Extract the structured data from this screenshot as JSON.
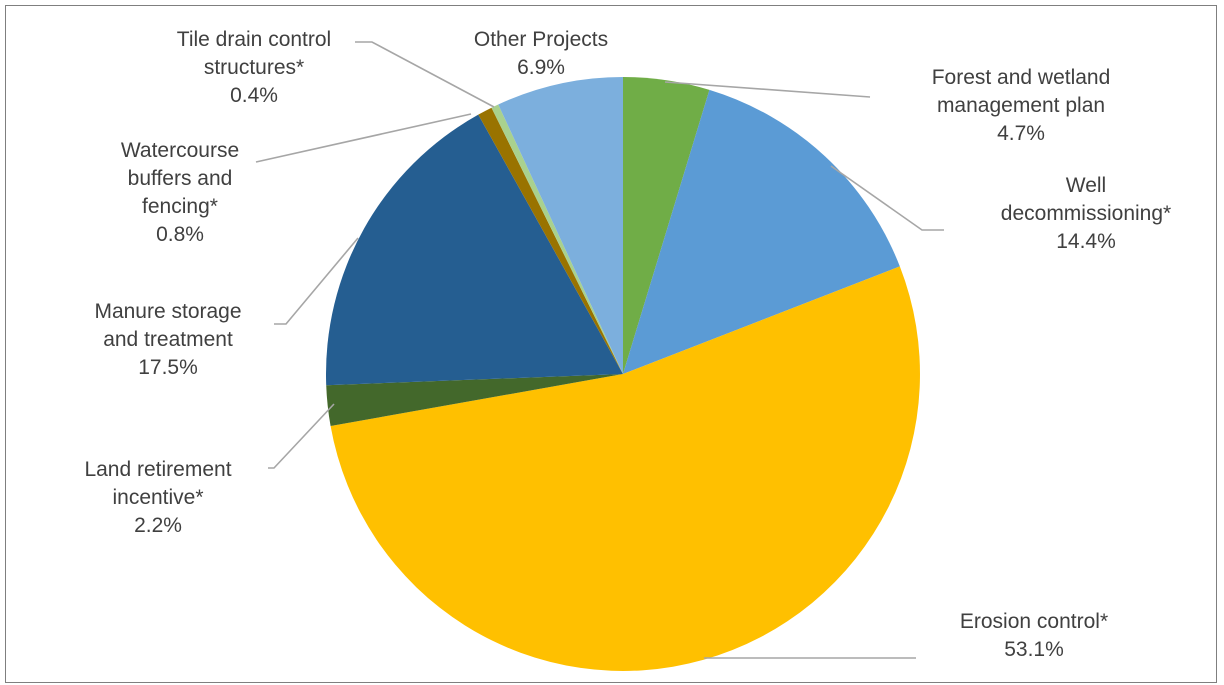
{
  "chart_data": {
    "type": "pie",
    "start_angle_deg": 0,
    "direction": "clockwise",
    "slices": [
      {
        "name": "Forest and wetland management plan",
        "label_lines": [
          "Forest and wetland",
          "management plan"
        ],
        "value": 4.7,
        "value_label": "4.7%",
        "color": "#70ad47"
      },
      {
        "name": "Well decommissioning*",
        "label_lines": [
          "Well",
          "decommissioning*"
        ],
        "value": 14.4,
        "value_label": "14.4%",
        "color": "#5b9bd5"
      },
      {
        "name": "Erosion control*",
        "label_lines": [
          "Erosion control*"
        ],
        "value": 53.1,
        "value_label": "53.1%",
        "color": "#ffc000"
      },
      {
        "name": "Land retirement incentive*",
        "label_lines": [
          "Land retirement",
          "incentive*"
        ],
        "value": 2.2,
        "value_label": "2.2%",
        "color": "#43682b"
      },
      {
        "name": "Manure storage and treatment",
        "label_lines": [
          "Manure storage",
          "and treatment"
        ],
        "value": 17.5,
        "value_label": "17.5%",
        "color": "#255e91"
      },
      {
        "name": "Watercourse buffers and fencing*",
        "label_lines": [
          "Watercourse",
          "buffers and",
          "fencing*"
        ],
        "value": 0.8,
        "value_label": "0.8%",
        "color": "#997300"
      },
      {
        "name": "Tile drain control structures*",
        "label_lines": [
          "Tile drain control",
          "structures*"
        ],
        "value": 0.4,
        "value_label": "0.4%",
        "color": "#a9d18e"
      },
      {
        "name": "Other Projects",
        "label_lines": [
          "Other Projects"
        ],
        "value": 6.9,
        "value_label": "6.9%",
        "color": "#7cafdd"
      }
    ]
  }
}
